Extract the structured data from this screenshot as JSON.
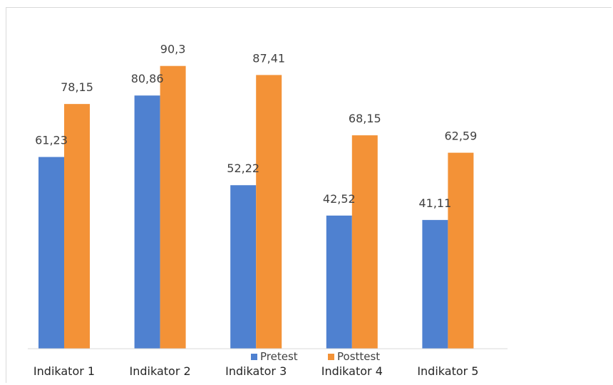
{
  "chart_data": {
    "type": "bar",
    "categories": [
      "Indikator 1",
      "Indikator 2",
      "Indikator 3",
      "Indikator 4",
      "Indikator 5"
    ],
    "series": [
      {
        "name": "Pretest",
        "color": "#4f81d0",
        "values": [
          61.23,
          80.86,
          52.22,
          42.52,
          41.11
        ],
        "labels": [
          "61,23",
          "80,86",
          "52,22",
          "42,52",
          "41,11"
        ]
      },
      {
        "name": "Posttest",
        "color": "#f39237",
        "values": [
          78.15,
          90.3,
          87.41,
          68.15,
          62.59
        ],
        "labels": [
          "78,15",
          "90,3",
          "87,41",
          "68,15",
          "62,59"
        ]
      }
    ],
    "ylim": [
      0,
      100
    ],
    "grid": false,
    "legend_position": "bottom-center",
    "data_labels": true
  }
}
